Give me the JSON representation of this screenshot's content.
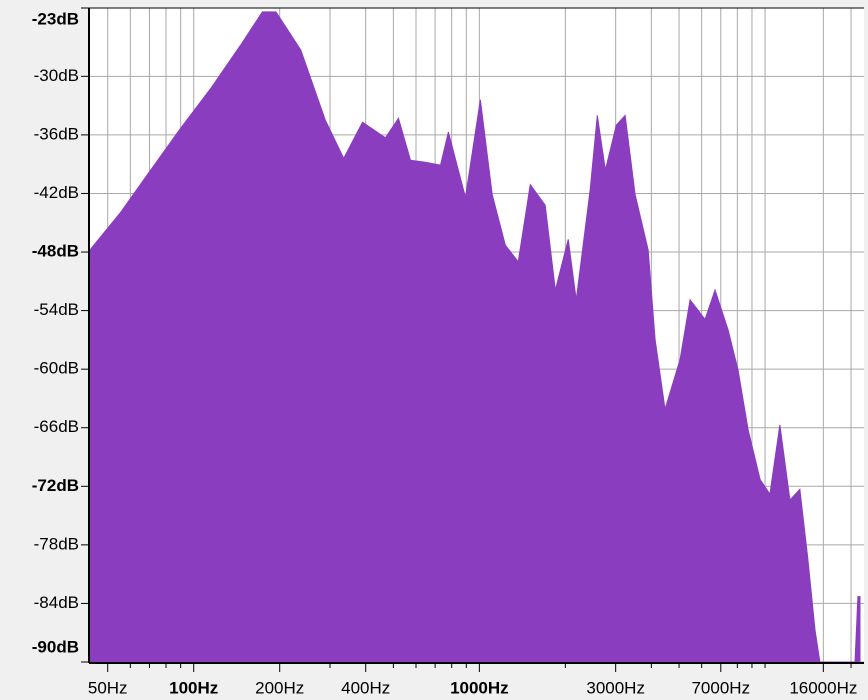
{
  "chart_data": {
    "type": "area",
    "x": [
      43.3,
      55.6,
      70.7,
      90.1,
      115,
      146,
      174,
      194,
      237,
      289,
      335,
      390,
      469,
      521,
      574,
      647,
      731,
      779,
      894,
      1008,
      1109,
      1233,
      1368,
      1507,
      1700,
      1845,
      2047,
      2183,
      2443,
      2587,
      2762,
      3016,
      3238,
      3509,
      3899,
      4124,
      4467,
      5043,
      5465,
      6166,
      6683,
      7430,
      8047,
      8726,
      9611,
      10400,
      11270,
      12220,
      13240,
      14130,
      14960,
      15560,
      20650,
      21140,
      21500
    ],
    "series": [
      {
        "color": "#8a3dbf",
        "values": [
          -47.8,
          -43.9,
          -39.6,
          -35.3,
          -31.2,
          -26.8,
          -23.4,
          -23.4,
          -27.3,
          -34.5,
          -38.4,
          -34.7,
          -36.3,
          -34.3,
          -38.6,
          -38.8,
          -39.1,
          -35.7,
          -42.4,
          -32.4,
          -42.1,
          -47.3,
          -49.0,
          -41.1,
          -43.2,
          -51.9,
          -46.7,
          -52.9,
          -41.6,
          -34.0,
          -39.6,
          -35.0,
          -34.0,
          -42.1,
          -47.8,
          -57.0,
          -64.1,
          -59.0,
          -52.9,
          -54.9,
          -51.9,
          -56.0,
          -60.1,
          -66.2,
          -71.3,
          -72.8,
          -65.7,
          -73.4,
          -72.3,
          -79.5,
          -86.7,
          -90,
          -90,
          -83.3,
          -83.3
        ]
      }
    ],
    "xlog": true,
    "xlim": [
      43,
      21500
    ],
    "ylim": [
      -90,
      -23
    ],
    "grid": true,
    "xticks": [
      {
        "value": 50,
        "label": "50Hz"
      },
      {
        "value": 100,
        "label": "100Hz",
        "bold": true
      },
      {
        "value": 200,
        "label": "200Hz"
      },
      {
        "value": 400,
        "label": "400Hz"
      },
      {
        "value": 1000,
        "label": "1000Hz",
        "bold": true
      },
      {
        "value": 3000,
        "label": "3000Hz"
      },
      {
        "value": 7000,
        "label": "7000Hz"
      },
      {
        "value": 16000,
        "label": "16000Hz"
      }
    ],
    "xminor": [
      60,
      70,
      80,
      90,
      300,
      500,
      600,
      700,
      800,
      900,
      2000,
      4000,
      5000,
      6000,
      8000,
      9000,
      10000,
      20000
    ],
    "yticks": [
      {
        "value": -23,
        "label": "-23dB",
        "bold": true
      },
      {
        "value": -30,
        "label": "-30dB"
      },
      {
        "value": -36,
        "label": "-36dB"
      },
      {
        "value": -42,
        "label": "-42dB"
      },
      {
        "value": -48,
        "label": "-48dB",
        "bold": true
      },
      {
        "value": -54,
        "label": "-54dB"
      },
      {
        "value": -60,
        "label": "-60dB"
      },
      {
        "value": -66,
        "label": "-66dB"
      },
      {
        "value": -72,
        "label": "-72dB",
        "bold": true
      },
      {
        "value": -78,
        "label": "-78dB"
      },
      {
        "value": -84,
        "label": "-84dB"
      },
      {
        "value": -90,
        "label": "-90dB",
        "bold": true
      }
    ]
  }
}
